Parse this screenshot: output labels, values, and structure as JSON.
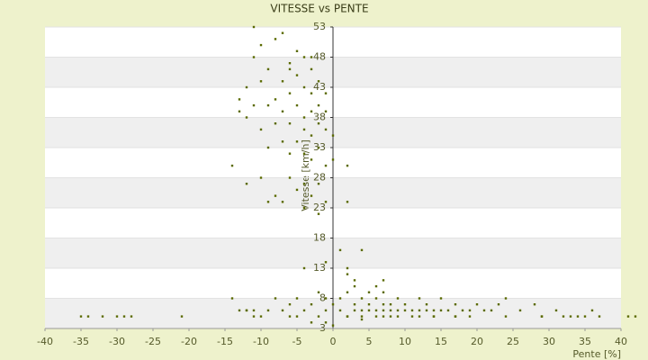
{
  "chart_data": {
    "type": "scatter",
    "title": "VITESSE vs PENTE",
    "x_label": "Pente [%]",
    "y_label": "Vitesse [km/h]",
    "color": "#5a6a00",
    "background": "#eef2cc",
    "band_colors": [
      "#ffffff",
      "#efefef"
    ],
    "xlim": [
      -40,
      40
    ],
    "xticks": [
      -40,
      -35,
      -30,
      -25,
      -20,
      -15,
      -10,
      -5,
      0,
      5,
      10,
      15,
      20,
      25,
      30,
      35,
      40
    ],
    "ylim": [
      3,
      53
    ],
    "yticks": [
      3,
      8,
      13,
      18,
      23,
      28,
      33,
      38,
      43,
      48,
      53
    ],
    "x": [
      -11,
      -10,
      -8,
      -7,
      -5,
      -4,
      -6,
      -3,
      -9,
      -10,
      -12,
      -7,
      -5,
      -4,
      -2,
      -3,
      -6,
      -8,
      -9,
      -11,
      -12,
      -7,
      -5,
      -4,
      -3,
      -2,
      -1,
      -6,
      -8,
      -10,
      -4,
      -3,
      -5,
      -7,
      -2,
      -4,
      -6,
      -9,
      -3,
      -1,
      -14,
      -12,
      -10,
      -6,
      -4,
      -2,
      -3,
      -5,
      -7,
      -9,
      -1,
      -2,
      -4,
      -8,
      -1,
      -2,
      0,
      0,
      2,
      2,
      -1,
      -3,
      -6,
      -11,
      -13,
      -13,
      0,
      1,
      1,
      2,
      2,
      2,
      3,
      3,
      3,
      4,
      4,
      4,
      5,
      5,
      5,
      6,
      6,
      6,
      7,
      7,
      7,
      8,
      8,
      8,
      9,
      9,
      10,
      10,
      11,
      11,
      12,
      12,
      13,
      13,
      14,
      14,
      15,
      15,
      16,
      17,
      17,
      18,
      19,
      20,
      21,
      22,
      23,
      24,
      26,
      28,
      29,
      31,
      36,
      -1,
      -1,
      -2,
      -2,
      -3,
      -4,
      -5,
      -5,
      -6,
      -7,
      -8,
      -9,
      -10,
      -11,
      -12,
      -14,
      -13,
      -4,
      -1,
      1,
      2,
      4,
      3,
      6,
      7,
      -35,
      -34,
      -32,
      -30,
      -29,
      -28,
      -21,
      -12,
      -11,
      -6,
      -3,
      -1,
      0,
      2,
      4,
      7,
      9,
      12,
      14,
      17,
      19,
      24,
      29,
      32,
      33,
      34,
      35,
      37,
      41,
      42
    ],
    "y": [
      53,
      50,
      51,
      52,
      49,
      48,
      47,
      46,
      46,
      44,
      43,
      44,
      45,
      43,
      44,
      42,
      42,
      41,
      40,
      40,
      38,
      39,
      40,
      38,
      39,
      40,
      39,
      37,
      37,
      36,
      36,
      35,
      34,
      34,
      33,
      32,
      32,
      33,
      31,
      30,
      30,
      27,
      28,
      28,
      27,
      27,
      25,
      26,
      24,
      24,
      24,
      22,
      23,
      25,
      36,
      37,
      35,
      31,
      30,
      24,
      42,
      48,
      46,
      48,
      41,
      39,
      7,
      6,
      8,
      5,
      9,
      12,
      6,
      7,
      10,
      6,
      8,
      5,
      7,
      9,
      6,
      6,
      8,
      5,
      7,
      6,
      9,
      6,
      7,
      5,
      6,
      8,
      6,
      7,
      5,
      6,
      6,
      8,
      6,
      7,
      5,
      6,
      6,
      8,
      6,
      5,
      7,
      6,
      6,
      7,
      6,
      6,
      7,
      8,
      6,
      7,
      5,
      6,
      6,
      8,
      6,
      5,
      9,
      7,
      6,
      5,
      8,
      7,
      6,
      8,
      6,
      5,
      6,
      6,
      8,
      6,
      13,
      14,
      16,
      13,
      16,
      11,
      10,
      11,
      5,
      5,
      5,
      5,
      5,
      5,
      5,
      6,
      5,
      5,
      4,
      4,
      3.5,
      5,
      4.5,
      5,
      5,
      5,
      5,
      5,
      5,
      5,
      5,
      5,
      5,
      5,
      5,
      5,
      5,
      5
    ]
  }
}
